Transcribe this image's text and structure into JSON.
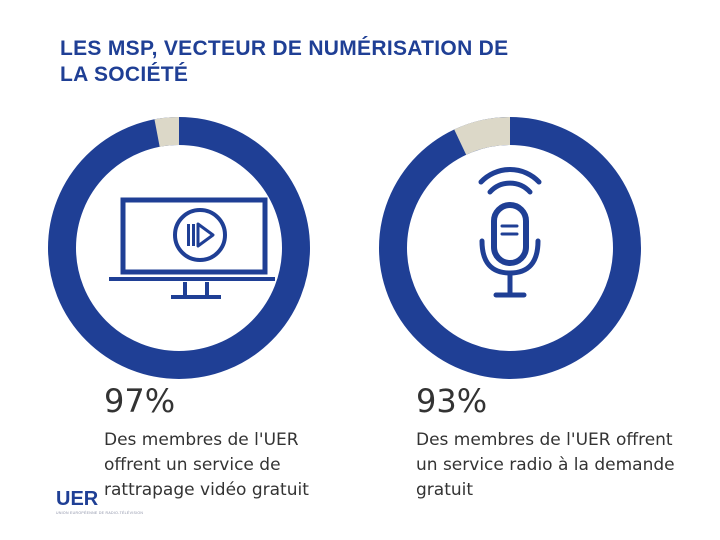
{
  "slide": {
    "title_line1": "LES MSP, VECTEUR DE NUMÉRISATION DE",
    "title_line2": "LA SOCIÉTÉ"
  },
  "stats": {
    "video": {
      "percent_label": "97%",
      "value": 97,
      "description": "Des membres de l'UER offrent un service de rattrapage vidéo gratuit",
      "icon": "monitor-play-icon"
    },
    "radio": {
      "percent_label": "93%",
      "value": 93,
      "description": "Des membres de l'UER offrent un service radio à la demande gratuit",
      "icon": "microphone-icon"
    }
  },
  "logo": {
    "text": "UER",
    "tagline": "UNION EUROPÉENNE DE RADIO-TÉLÉVISION"
  },
  "colors": {
    "primary": "#1f3f95",
    "remainder": "#dcd8c8",
    "text": "#333333"
  }
}
